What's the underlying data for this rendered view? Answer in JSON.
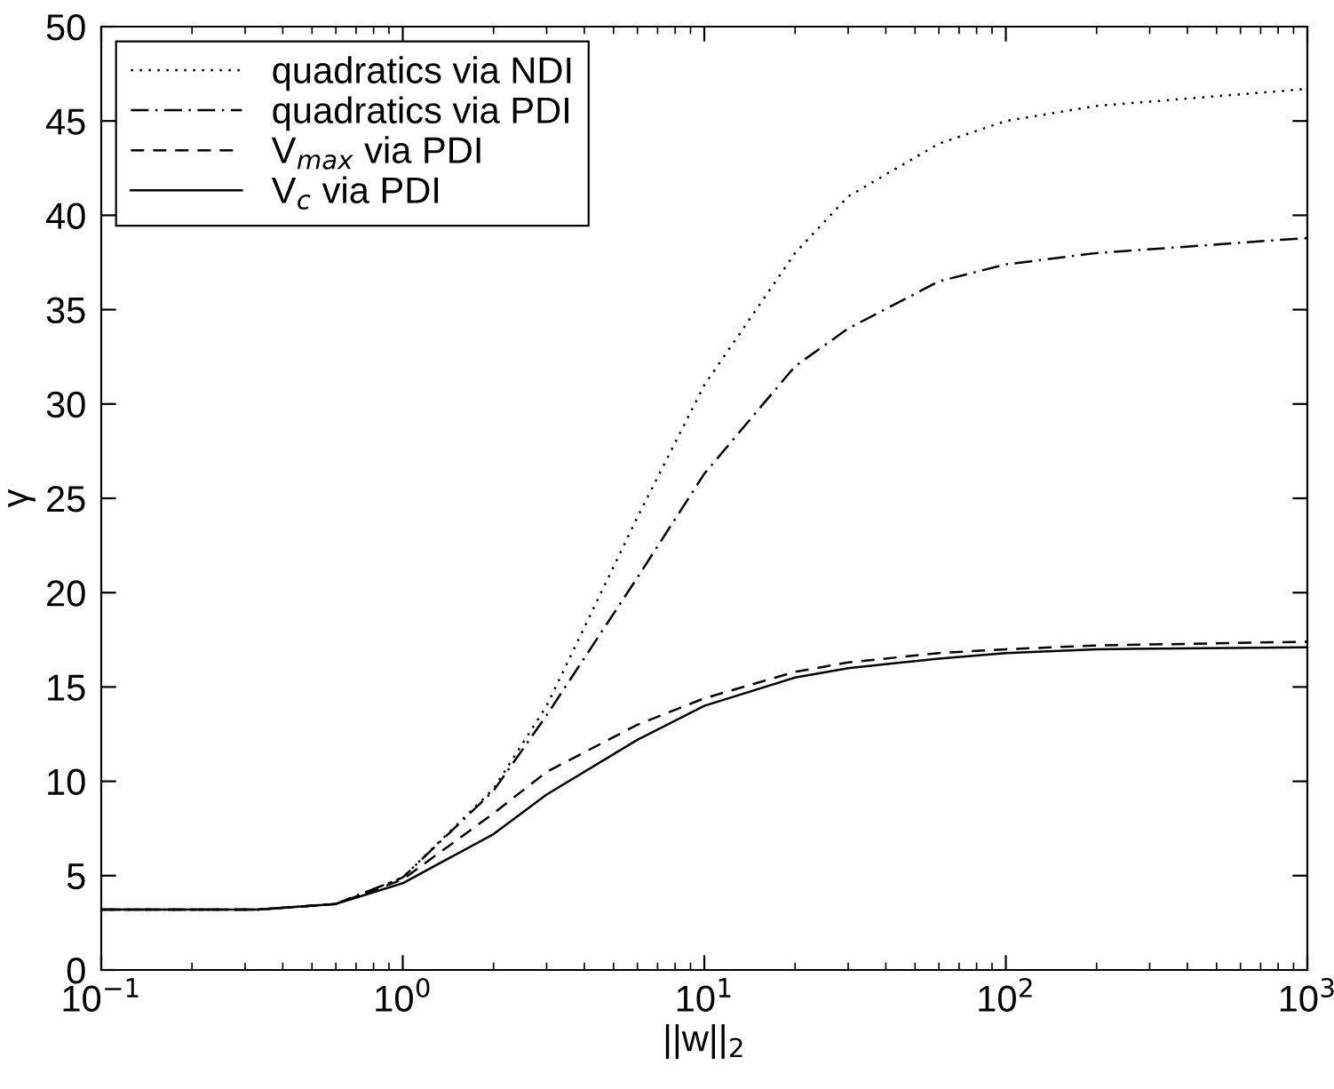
{
  "chart_data": {
    "type": "line",
    "xlabel": "||w||$_{2}$",
    "ylabel": "γ",
    "log": "x",
    "xlim": [
      0.1,
      1000
    ],
    "ylim": [
      0,
      50
    ],
    "xticks": [
      {
        "value": 0.1,
        "label": "10$^{−1}$"
      },
      {
        "value": 1,
        "label": "10$^{0}$"
      },
      {
        "value": 10,
        "label": "10$^{1}$"
      },
      {
        "value": 100,
        "label": "10$^{2}$"
      },
      {
        "value": 1000,
        "label": "10$^{3}$"
      }
    ],
    "yticks": [
      0,
      5,
      10,
      15,
      20,
      25,
      30,
      35,
      40,
      45,
      50
    ],
    "grid": false,
    "legend": "top left",
    "x": [
      0.1,
      0.33,
      0.6,
      1,
      2,
      3,
      6,
      10,
      20,
      30,
      60,
      100,
      200,
      1000
    ],
    "series": [
      {
        "name": "quadratics via NDI",
        "color": "#000000",
        "line_style": "dotted",
        "values": [
          3.2,
          3.2,
          3.5,
          4.9,
          9.6,
          14,
          24,
          31,
          38,
          41,
          43.8,
          45,
          45.8,
          46.7
        ]
      },
      {
        "name": "quadratics via PDI",
        "color": "#000000",
        "line_style": "dashdot",
        "values": [
          3.2,
          3.2,
          3.5,
          4.9,
          9.5,
          13.5,
          20.8,
          26.3,
          32,
          34,
          36.5,
          37.4,
          38,
          38.8
        ]
      },
      {
        "name": "V$_{max}$ via PDI",
        "color": "#000000",
        "line_style": "dashed",
        "values": [
          3.2,
          3.2,
          3.5,
          4.8,
          8.3,
          10.5,
          13,
          14.4,
          15.8,
          16.3,
          16.8,
          17,
          17.2,
          17.4
        ]
      },
      {
        "name": "V$_{c}$ via PDI",
        "color": "#000000",
        "line_style": "solid",
        "values": [
          3.2,
          3.2,
          3.5,
          4.6,
          7.2,
          9.3,
          12.2,
          14,
          15.5,
          16,
          16.5,
          16.8,
          17,
          17.1
        ]
      }
    ]
  }
}
